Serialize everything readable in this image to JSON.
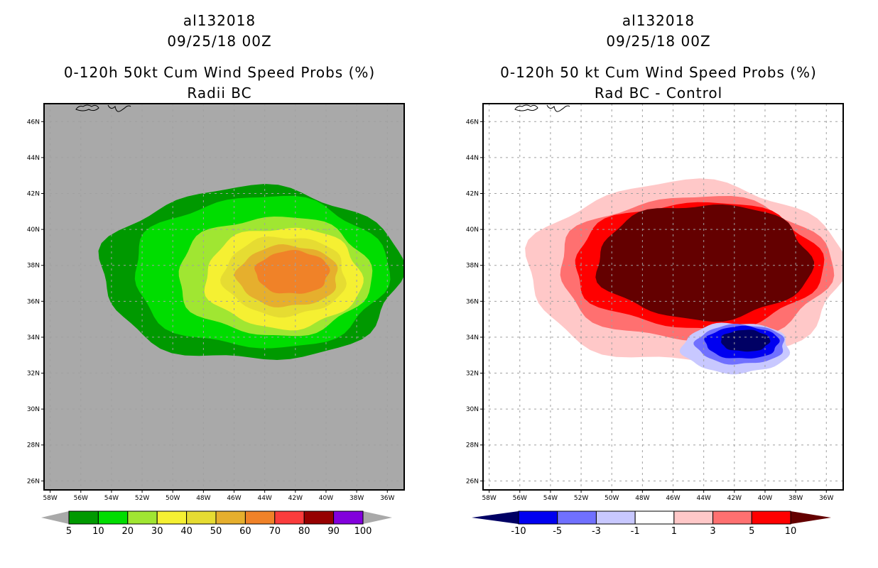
{
  "chart_data": [
    {
      "type": "heatmap",
      "panel": "left",
      "title_lines": [
        "al132018",
        "09/25/18 00Z",
        "0-120h 50kt Cum Wind Speed Probs (%)",
        "Radii BC"
      ],
      "xlabel": "",
      "ylabel": "",
      "x_ticks": [
        "58W",
        "56W",
        "54W",
        "52W",
        "50W",
        "48W",
        "46W",
        "44W",
        "42W",
        "40W",
        "38W",
        "36W"
      ],
      "y_ticks": [
        "46N",
        "44N",
        "42N",
        "40N",
        "38N",
        "36N",
        "34N",
        "32N",
        "30N",
        "28N",
        "26N"
      ],
      "xlim_deg_west": [
        58.4,
        34.9
      ],
      "ylim_deg_north": [
        25.5,
        47.0
      ],
      "grid": true,
      "background_color": "#a9a9a9",
      "colorbar": {
        "levels": [
          "5",
          "10",
          "20",
          "30",
          "40",
          "50",
          "60",
          "70",
          "80",
          "90",
          "100"
        ],
        "colors": [
          "#009900",
          "#00dd00",
          "#a0e632",
          "#f5f032",
          "#e6dc32",
          "#e6af2d",
          "#f08228",
          "#fa3c3c",
          "#960000",
          "#8200dc"
        ],
        "under_color": "#a9a9a9",
        "over_color": "#a9a9a9"
      },
      "contours": [
        {
          "level": 5,
          "color": "#009900",
          "center": [
            44.9,
            37.5
          ],
          "radius_deg": [
            9.8,
            4.8
          ]
        },
        {
          "level": 10,
          "color": "#00dd00",
          "center": [
            44.3,
            37.6
          ],
          "radius_deg": [
            8.3,
            4.2
          ]
        },
        {
          "level": 20,
          "color": "#a0e632",
          "center": [
            43.4,
            37.4
          ],
          "radius_deg": [
            6.3,
            3.3
          ]
        },
        {
          "level": 30,
          "color": "#f5f032",
          "center": [
            42.8,
            37.3
          ],
          "radius_deg": [
            5.1,
            2.8
          ]
        },
        {
          "level": 40,
          "color": "#e6dc32",
          "center": [
            42.7,
            37.4
          ],
          "radius_deg": [
            4.0,
            2.2
          ]
        },
        {
          "level": 50,
          "color": "#e6af2d",
          "center": [
            42.5,
            37.4
          ],
          "radius_deg": [
            3.3,
            1.7
          ]
        },
        {
          "level": 60,
          "color": "#f08228",
          "center": [
            42.2,
            37.6
          ],
          "radius_deg": [
            2.4,
            1.2
          ]
        }
      ]
    },
    {
      "type": "heatmap",
      "panel": "right",
      "title_lines": [
        "al132018",
        "09/25/18 00Z",
        "0-120h 50 kt Cum Wind Speed Probs (%)",
        "Rad BC - Control"
      ],
      "xlabel": "",
      "ylabel": "",
      "x_ticks": [
        "58W",
        "56W",
        "54W",
        "52W",
        "50W",
        "48W",
        "46W",
        "44W",
        "42W",
        "40W",
        "38W",
        "36W"
      ],
      "y_ticks": [
        "46N",
        "44N",
        "42N",
        "40N",
        "38N",
        "36N",
        "34N",
        "32N",
        "30N",
        "28N",
        "26N"
      ],
      "xlim_deg_west": [
        58.4,
        34.9
      ],
      "ylim_deg_north": [
        25.5,
        47.0
      ],
      "grid": true,
      "background_color": "#ffffff",
      "colorbar": {
        "levels": [
          "-10",
          "-5",
          "-3",
          "-1",
          "1",
          "3",
          "5",
          "10"
        ],
        "colors": [
          "#0000f0",
          "#7070ff",
          "#c8c8ff",
          "#ffffff",
          "#ffc8c8",
          "#ff7070",
          "#ff0000"
        ],
        "under_color": "#000064",
        "over_color": "#640000"
      },
      "contours": [
        {
          "level": 1,
          "color": "#ffc8c8",
          "center": [
            45.2,
            37.6
          ],
          "radius_deg": [
            10.3,
            5.0
          ]
        },
        {
          "level": 3,
          "color": "#ff7070",
          "center": [
            44.6,
            37.8
          ],
          "radius_deg": [
            8.9,
            4.0
          ]
        },
        {
          "level": 5,
          "color": "#ff0000",
          "center": [
            44.4,
            38.0
          ],
          "radius_deg": [
            8.1,
            3.5
          ]
        },
        {
          "level": 10,
          "color": "#640000",
          "center": [
            44.0,
            38.2
          ],
          "radius_deg": [
            7.0,
            3.2
          ]
        },
        {
          "level": -1,
          "color": "#c8c8ff",
          "center": [
            41.9,
            33.4
          ],
          "radius_deg": [
            3.5,
            1.4
          ]
        },
        {
          "level": -3,
          "color": "#7070ff",
          "center": [
            41.6,
            33.6
          ],
          "radius_deg": [
            2.9,
            1.1
          ]
        },
        {
          "level": -5,
          "color": "#0000f0",
          "center": [
            41.5,
            33.7
          ],
          "radius_deg": [
            2.4,
            0.9
          ]
        },
        {
          "level": -10,
          "color": "#000064",
          "center": [
            41.3,
            33.8
          ],
          "radius_deg": [
            1.6,
            0.6
          ]
        }
      ]
    }
  ]
}
